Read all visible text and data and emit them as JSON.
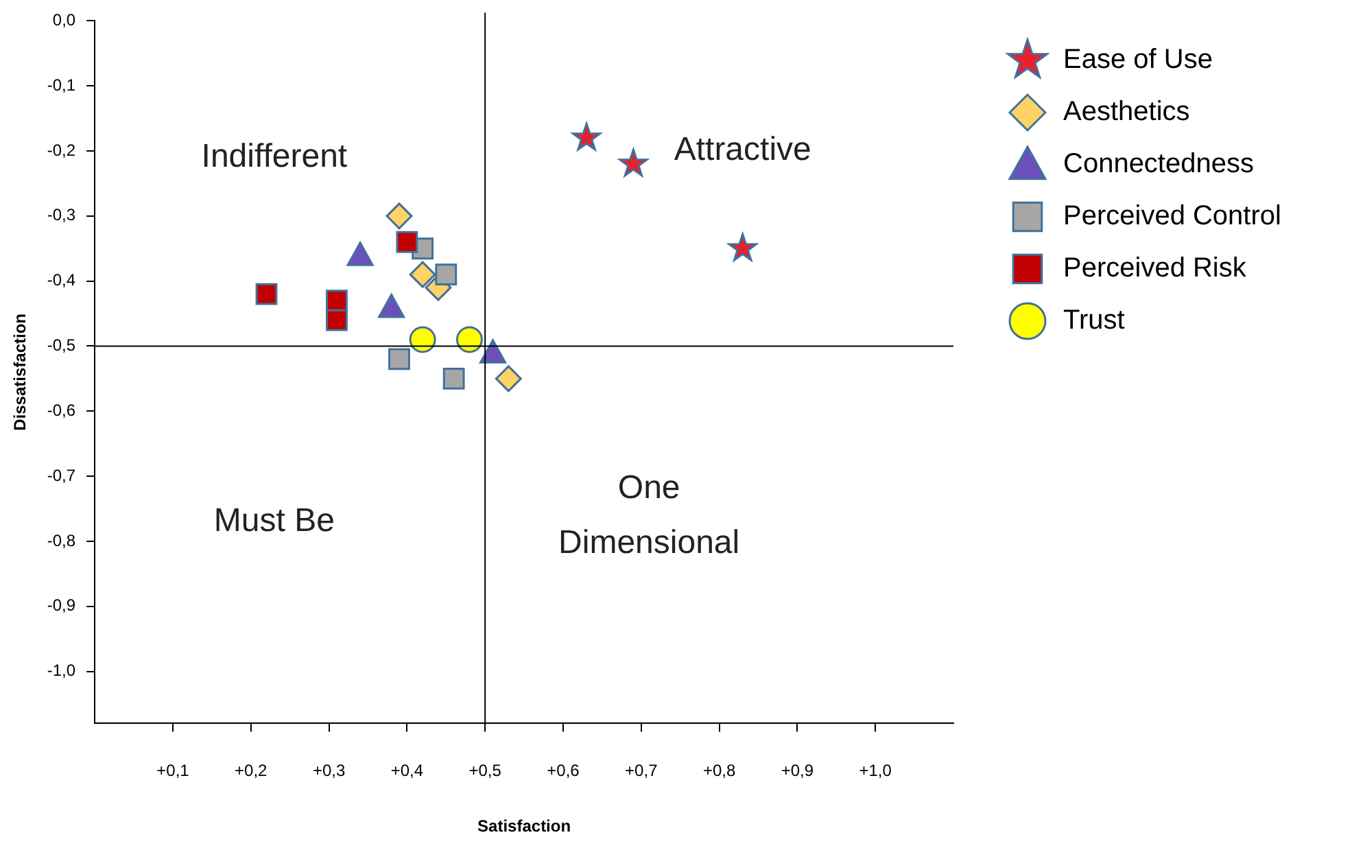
{
  "chart_data": {
    "type": "scatter",
    "xlabel": "Satisfaction",
    "ylabel": "Dissatisfaction",
    "xlim": [
      0,
      1.1
    ],
    "ylim": [
      -1.08,
      0
    ],
    "xticks": [
      {
        "value": 0.1,
        "label": "+0,1"
      },
      {
        "value": 0.2,
        "label": "+0,2"
      },
      {
        "value": 0.3,
        "label": "+0,3"
      },
      {
        "value": 0.4,
        "label": "+0,4"
      },
      {
        "value": 0.5,
        "label": "+0,5"
      },
      {
        "value": 0.6,
        "label": "+0,6"
      },
      {
        "value": 0.7,
        "label": "+0,7"
      },
      {
        "value": 0.8,
        "label": "+0,8"
      },
      {
        "value": 0.9,
        "label": "+0,9"
      },
      {
        "value": 1.0,
        "label": "+1,0"
      }
    ],
    "yticks": [
      {
        "value": 0,
        "label": "0,0"
      },
      {
        "value": -0.1,
        "label": "-0,1"
      },
      {
        "value": -0.2,
        "label": "-0,2"
      },
      {
        "value": -0.3,
        "label": "-0,3"
      },
      {
        "value": -0.4,
        "label": "-0,4"
      },
      {
        "value": -0.5,
        "label": "-0,5"
      },
      {
        "value": -0.6,
        "label": "-0,6"
      },
      {
        "value": -0.7,
        "label": "-0,7"
      },
      {
        "value": -0.8,
        "label": "-0,8"
      },
      {
        "value": -0.9,
        "label": "-0,9"
      },
      {
        "value": -1.0,
        "label": "-1,0"
      }
    ],
    "grid": false,
    "legend": "right",
    "ref_lines": [
      {
        "axis": "x",
        "value": 0.5
      },
      {
        "axis": "y",
        "value": -0.5
      }
    ],
    "annotations": [
      "Indifferent",
      "Attractive",
      "Must Be",
      "One\nDimensional"
    ],
    "series": [
      {
        "name": "Ease of Use",
        "color": "#e8202a",
        "marker": "star",
        "x": [
          0.63,
          0.69,
          0.83
        ],
        "values": [
          -0.18,
          -0.22,
          -0.35
        ]
      },
      {
        "name": "Aesthetics",
        "color": "#ffd266",
        "marker": "diamond",
        "x": [
          0.39,
          0.42,
          0.44,
          0.53
        ],
        "values": [
          -0.3,
          -0.39,
          -0.41,
          -0.55
        ]
      },
      {
        "name": "Connectedness",
        "color": "#6b4fbb",
        "marker": "triangle",
        "x": [
          0.34,
          0.38,
          0.51
        ],
        "values": [
          -0.36,
          -0.44,
          -0.51
        ]
      },
      {
        "name": "Perceived Control",
        "color": "#a6a6a6",
        "marker": "square",
        "x": [
          0.42,
          0.45,
          0.39,
          0.46
        ],
        "values": [
          -0.35,
          -0.39,
          -0.52,
          -0.55
        ]
      },
      {
        "name": "Perceived Risk",
        "color": "#c00000",
        "marker": "square",
        "x": [
          0.22,
          0.31,
          0.31,
          0.4
        ],
        "values": [
          -0.42,
          -0.43,
          -0.46,
          -0.34
        ]
      },
      {
        "name": "Trust",
        "color": "#ffff00",
        "marker": "circle",
        "x": [
          0.42,
          0.48
        ],
        "values": [
          -0.49,
          -0.49
        ]
      }
    ]
  }
}
